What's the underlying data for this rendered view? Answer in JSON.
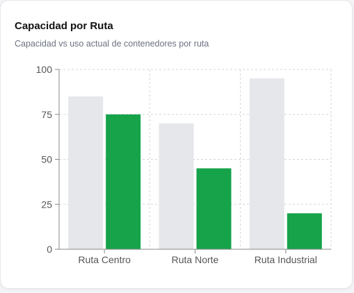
{
  "card": {
    "title": "Capacidad por Ruta",
    "subtitle": "Capacidad vs uso actual de contenedores por ruta"
  },
  "chart_data": {
    "type": "bar",
    "title": "Capacidad por Ruta",
    "subtitle": "Capacidad vs uso actual de contenedores por ruta",
    "categories": [
      "Ruta Centro",
      "Ruta Norte",
      "Ruta Industrial"
    ],
    "series": [
      {
        "values": [
          85,
          70,
          95
        ],
        "color": "#e5e7eb"
      },
      {
        "values": [
          75,
          45,
          20
        ],
        "color": "#16a34a"
      }
    ],
    "ylim": [
      0,
      100
    ],
    "yticks": [
      0,
      25,
      50,
      75,
      100
    ],
    "ytick_labels": [
      "0",
      "25",
      "50",
      "75",
      "100"
    ],
    "grid": true,
    "legend": "none",
    "colors": {
      "grid": "#d1d5db",
      "axis": "#888888",
      "text": "#555555"
    }
  }
}
